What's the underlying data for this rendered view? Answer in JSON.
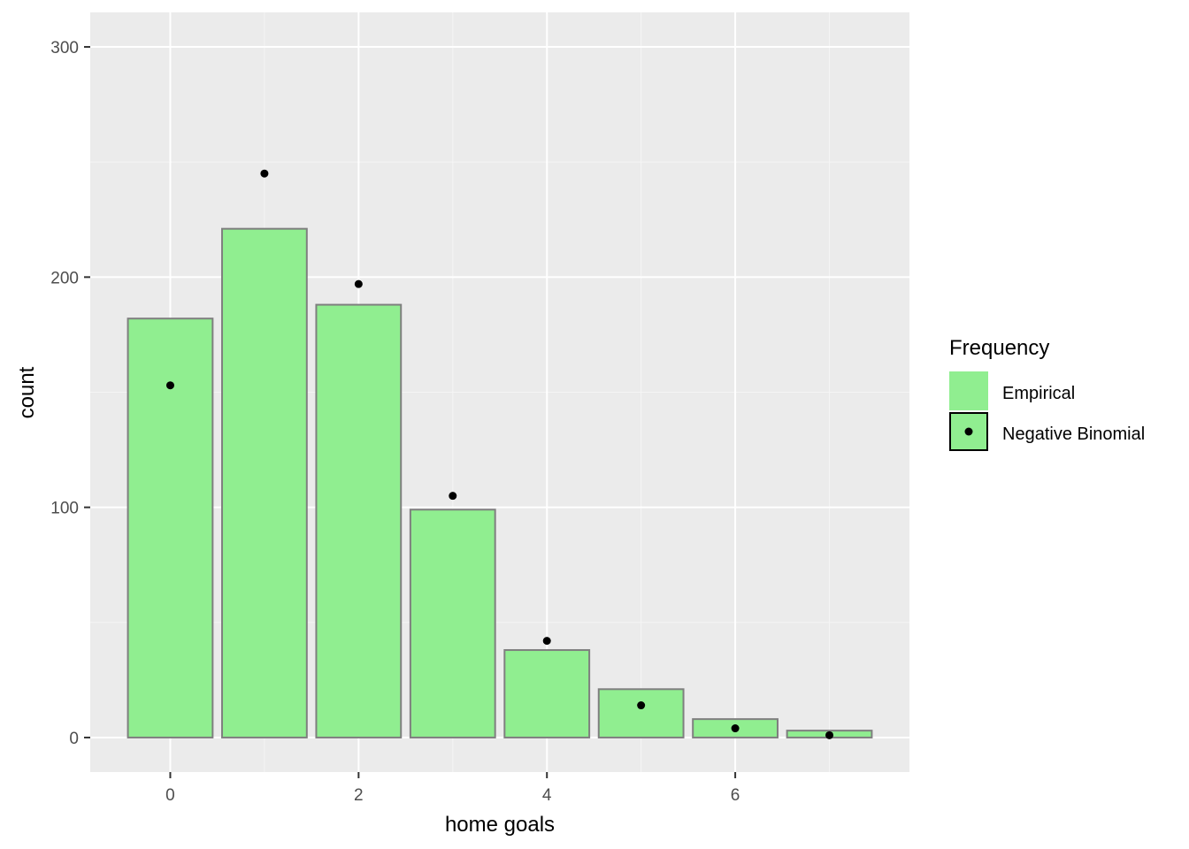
{
  "chart_data": {
    "type": "bar",
    "xlabel": "home goals",
    "ylabel": "count",
    "x": [
      0,
      1,
      2,
      3,
      4,
      5,
      6,
      7
    ],
    "xticks": [
      0,
      2,
      4,
      6
    ],
    "xtick_labels": [
      "0",
      "2",
      "4",
      "6"
    ],
    "xlim": [
      -0.85,
      7.85
    ],
    "yticks": [
      0,
      100,
      200,
      300
    ],
    "ytick_labels": [
      "0",
      "100",
      "200",
      "300"
    ],
    "ylim": [
      -15,
      315
    ],
    "grid": true,
    "legend": {
      "title": "Frequency",
      "placement": "right"
    },
    "series": [
      {
        "name": "Empirical",
        "kind": "bar",
        "values": [
          182,
          221,
          188,
          99,
          38,
          21,
          8,
          3
        ]
      },
      {
        "name": "Negative Binomial",
        "kind": "point",
        "values": [
          153,
          245,
          197,
          105,
          42,
          14,
          4,
          1
        ]
      }
    ],
    "colors": {
      "panel_bg": "#ebebeb",
      "grid_major": "#ffffff",
      "grid_minor": "#f5f5f5",
      "bar_fill": "#90ee90",
      "bar_stroke": "#7f7f7f",
      "point": "#000000",
      "tick": "#333333"
    }
  }
}
